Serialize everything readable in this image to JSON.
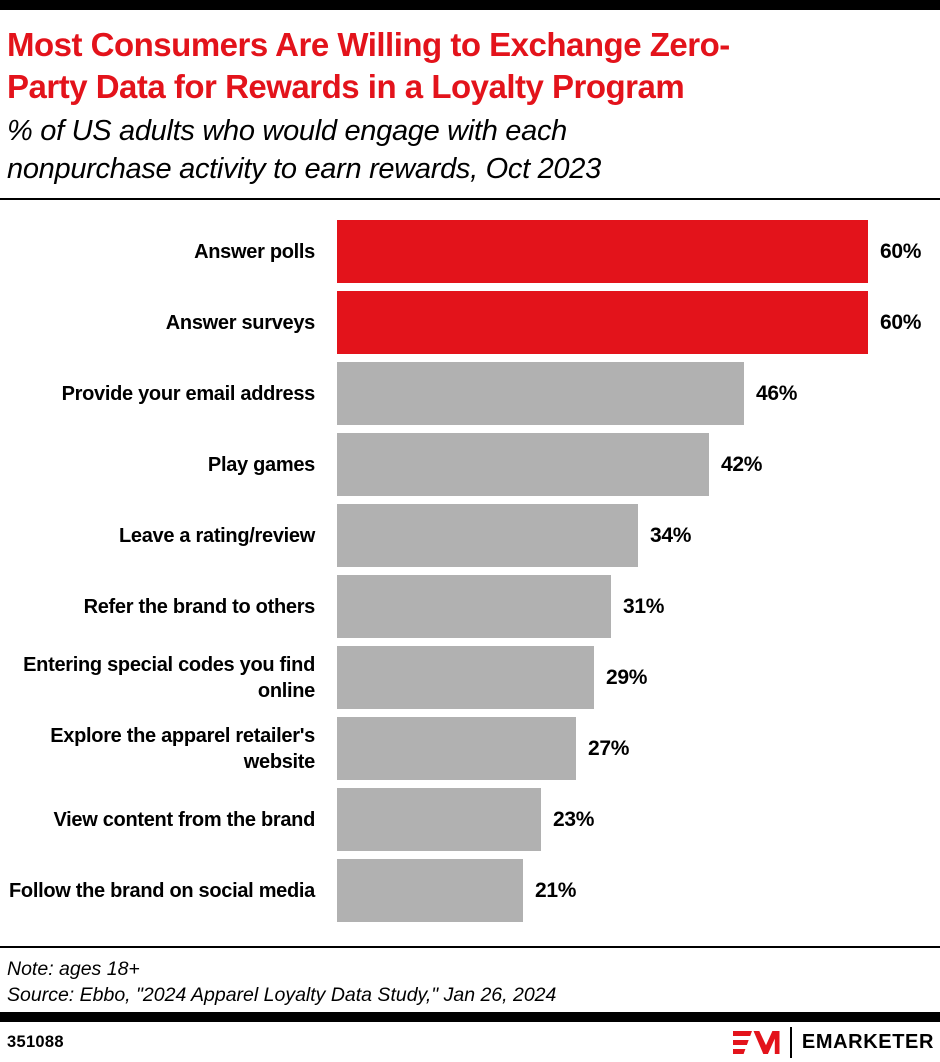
{
  "header": {
    "title_lines": [
      "Most Consumers Are Willing to Exchange Zero-",
      "Party Data for Rewards in a Loyalty Program"
    ],
    "subtitle_lines": [
      "% of US adults who would engage with each",
      "nonpurchase activity to earn rewards, Oct 2023"
    ]
  },
  "chart_data": {
    "type": "bar",
    "orientation": "horizontal",
    "title": "Most Consumers Are Willing to Exchange Zero-Party Data for Rewards in a Loyalty Program",
    "subtitle": "% of US adults who would engage with each nonpurchase activity to earn rewards, Oct 2023",
    "categories": [
      "Answer polls",
      "Answer surveys",
      "Provide your email address",
      "Play games",
      "Leave a rating/review",
      "Refer the brand to others",
      "Entering special codes you find online",
      "Explore the apparel retailer's website",
      "View content from the brand",
      "Follow the brand on social media"
    ],
    "values": [
      60,
      60,
      46,
      42,
      34,
      31,
      29,
      27,
      23,
      21
    ],
    "value_suffix": "%",
    "xlim": [
      0,
      60
    ],
    "grid": false,
    "legend": false,
    "highlighted_categories": [
      "Answer polls",
      "Answer surveys"
    ],
    "highlight_color": "#E3131B",
    "default_color": "#B1B1B1"
  },
  "colors": {
    "accent_red": "#E3131B",
    "bar_gray": "#B1B1B1",
    "text_black": "#000000"
  },
  "footer": {
    "note": "Note: ages 18+",
    "source": "Source: Ebbo, \"2024 Apparel Loyalty Data Study,\" Jan 26, 2024",
    "chart_id": "351088",
    "brand_wordmark": "EMARKETER"
  }
}
